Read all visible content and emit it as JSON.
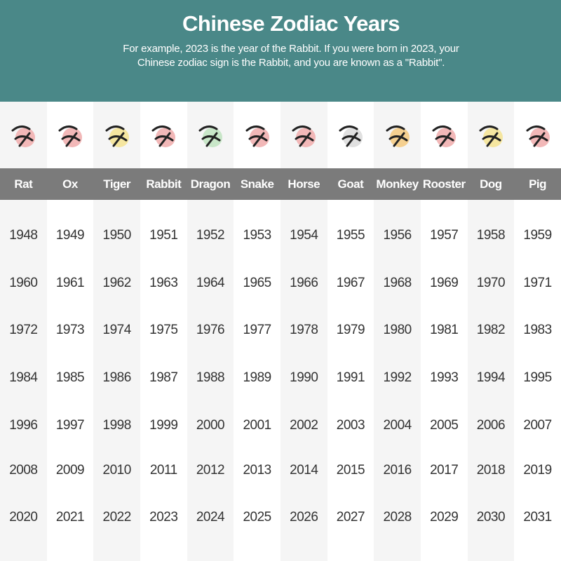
{
  "header": {
    "title": "Chinese Zodiac Years",
    "subtitle_line1": "For example, 2023 is the year of the Rabbit. If you were born in 2023, your",
    "subtitle_line2": "Chinese zodiac sign is the Rabbit, and you are known as a \"Rabbit\"."
  },
  "colors": {
    "header_bg": "#4a8888",
    "label_bar": "#7b7b7b",
    "alt_column": "#f5f5f5"
  },
  "signs": [
    {
      "name": "Rat",
      "icon": "rat-ink-icon",
      "accent": "#f2b8b8",
      "years": [
        "1948",
        "1960",
        "1972",
        "1984",
        "1996",
        "2008",
        "2020"
      ]
    },
    {
      "name": "Ox",
      "icon": "ox-ink-icon",
      "accent": "#f2b8b8",
      "years": [
        "1949",
        "1961",
        "1973",
        "1985",
        "1997",
        "2009",
        "2021"
      ]
    },
    {
      "name": "Tiger",
      "icon": "tiger-ink-icon",
      "accent": "#f5e6a0",
      "years": [
        "1950",
        "1962",
        "1974",
        "1986",
        "1998",
        "2010",
        "2022"
      ]
    },
    {
      "name": "Rabbit",
      "icon": "rabbit-ink-icon",
      "accent": "#f2b8b8",
      "years": [
        "1951",
        "1963",
        "1975",
        "1987",
        "1999",
        "2011",
        "2023"
      ]
    },
    {
      "name": "Dragon",
      "icon": "dragon-ink-icon",
      "accent": "#c8e6c8",
      "years": [
        "1952",
        "1964",
        "1976",
        "1988",
        "2000",
        "2012",
        "2024"
      ]
    },
    {
      "name": "Snake",
      "icon": "snake-ink-icon",
      "accent": "#f2b8b8",
      "years": [
        "1953",
        "1965",
        "1977",
        "1989",
        "2001",
        "2013",
        "2025"
      ]
    },
    {
      "name": "Horse",
      "icon": "horse-ink-icon",
      "accent": "#f2b8b8",
      "years": [
        "1954",
        "1966",
        "1978",
        "1990",
        "2002",
        "2014",
        "2026"
      ]
    },
    {
      "name": "Goat",
      "icon": "goat-ink-icon",
      "accent": "#e0e0e0",
      "years": [
        "1955",
        "1967",
        "1979",
        "1991",
        "2003",
        "2015",
        "2027"
      ]
    },
    {
      "name": "Monkey",
      "icon": "monkey-ink-icon",
      "accent": "#f5d090",
      "years": [
        "1956",
        "1968",
        "1980",
        "1992",
        "2004",
        "2016",
        "2028"
      ]
    },
    {
      "name": "Rooster",
      "icon": "rooster-ink-icon",
      "accent": "#f2b8b8",
      "years": [
        "1957",
        "1969",
        "1981",
        "1993",
        "2005",
        "2017",
        "2029"
      ]
    },
    {
      "name": "Dog",
      "icon": "dog-ink-icon",
      "accent": "#f5e6a0",
      "years": [
        "1958",
        "1970",
        "1982",
        "1994",
        "2006",
        "2018",
        "2030"
      ]
    },
    {
      "name": "Pig",
      "icon": "pig-ink-icon",
      "accent": "#f2b8b8",
      "years": [
        "1959",
        "1971",
        "1983",
        "1995",
        "2007",
        "2019",
        "2031"
      ]
    }
  ]
}
